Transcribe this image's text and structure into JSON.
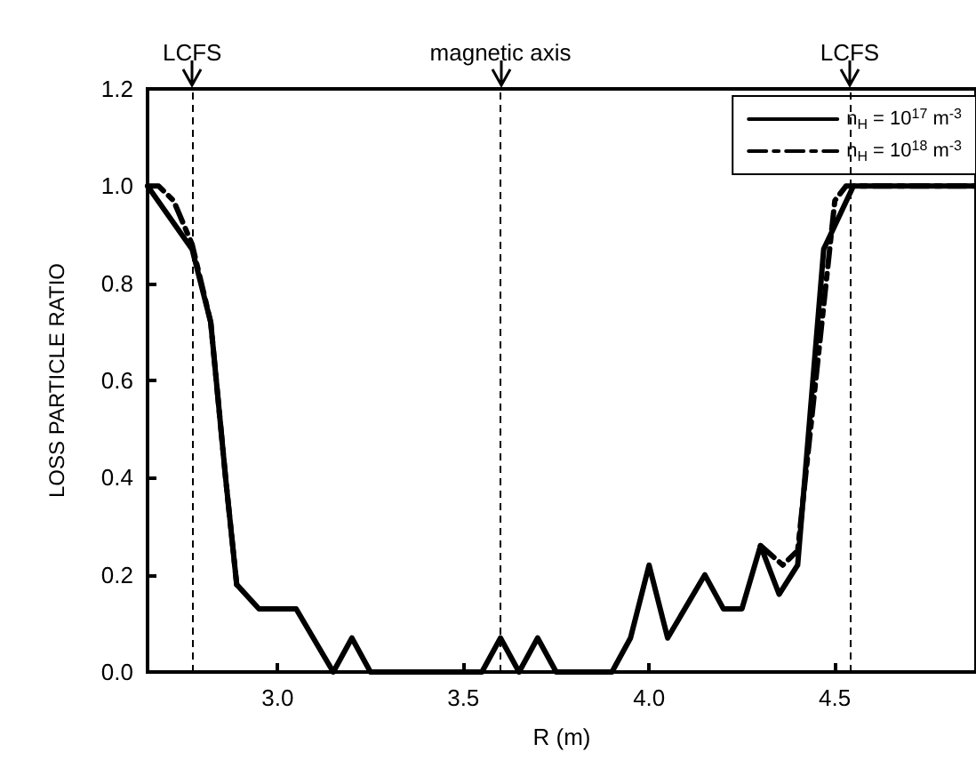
{
  "chart_data": {
    "type": "line",
    "xlabel": "R (m)",
    "ylabel": "LOSS PARTICLE RATIO",
    "xlim": [
      2.65,
      4.88
    ],
    "xticks": [
      {
        "value": 3.0,
        "label": "3.0"
      },
      {
        "value": 3.5,
        "label": "3.5"
      },
      {
        "value": 4.0,
        "label": "4.0"
      },
      {
        "value": 4.5,
        "label": "4.5"
      }
    ],
    "ylim": [
      0,
      1.2
    ],
    "yticks": [
      {
        "value": 0,
        "label": "0.0"
      },
      {
        "value": 0.2,
        "label": "0.2"
      },
      {
        "value": 0.4,
        "label": "0.4"
      },
      {
        "value": 0.6,
        "label": "0.6"
      },
      {
        "value": 0.8,
        "label": "0.8"
      },
      {
        "value": 1.0,
        "label": "1.0"
      },
      {
        "value": 1.2,
        "label": "1.2"
      }
    ],
    "grid": false,
    "legend": "top right",
    "marker": "none",
    "series": [
      {
        "name": "n$_{H}$ = 10$^{17}$ m$^{-3}$",
        "color": "#000000",
        "line_style": "solid",
        "x": [
          2.65,
          2.77,
          2.82,
          2.86,
          2.89,
          2.95,
          3.05,
          3.15,
          3.2,
          3.25,
          3.55,
          3.6,
          3.65,
          3.7,
          3.75,
          3.9,
          3.95,
          4.0,
          4.05,
          4.15,
          4.2,
          4.25,
          4.3,
          4.35,
          4.4,
          4.47,
          4.55,
          4.88
        ],
        "values": [
          1.0,
          0.87,
          0.72,
          0.4,
          0.18,
          0.13,
          0.13,
          0.0,
          0.07,
          0.0,
          0.0,
          0.07,
          0.0,
          0.07,
          0.0,
          0.0,
          0.07,
          0.22,
          0.07,
          0.2,
          0.13,
          0.13,
          0.26,
          0.16,
          0.22,
          0.87,
          1.0,
          1.0
        ]
      },
      {
        "name": "n$_{H}$ = 10$^{18}$ m$^{-3}$",
        "color": "#000000",
        "line_style": "dashdot",
        "x": [
          2.65,
          2.68,
          2.72,
          2.77,
          2.82,
          2.86,
          2.89,
          3.5,
          4.3,
          4.36,
          4.4,
          4.5,
          4.53,
          4.88
        ],
        "values": [
          1.0,
          1.0,
          0.97,
          0.88,
          0.72,
          0.4,
          0.18,
          null,
          0.26,
          0.22,
          0.25,
          0.97,
          1.0,
          1.0
        ]
      }
    ],
    "ref_lines": [
      {
        "axis": "x",
        "value": 2.77,
        "label": "LCFS"
      },
      {
        "axis": "x",
        "value": 3.6,
        "label": "magnetic axis"
      },
      {
        "axis": "x",
        "value": 4.54,
        "label": "LCFS"
      }
    ]
  }
}
